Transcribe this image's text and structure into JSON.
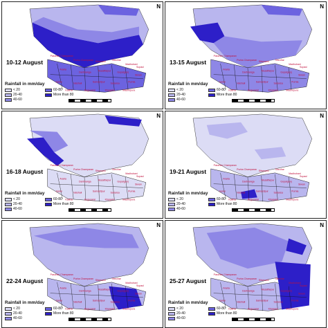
{
  "panels": [
    {
      "date": "10-12 August",
      "intensity": "high-west"
    },
    {
      "date": "13-15 August",
      "intensity": "high-west-medium"
    },
    {
      "date": "16-18 August",
      "intensity": "low-west"
    },
    {
      "date": "19-21 August",
      "intensity": "low"
    },
    {
      "date": "22-24 August",
      "intensity": "medium-east"
    },
    {
      "date": "25-27 August",
      "intensity": "high-east"
    }
  ],
  "legend": {
    "title": "Rainfall in mm/day",
    "items": [
      {
        "label": "< 20",
        "color": "#dcdcf5"
      },
      {
        "label": "60-80",
        "color": "#6c63e0"
      },
      {
        "label": "20-40",
        "color": "#b9b6ee"
      },
      {
        "label": "More than 80",
        "color": "#2d1fc8"
      },
      {
        "label": "40-60",
        "color": "#8e87e6"
      }
    ]
  },
  "north_symbol": "N",
  "districts": [
    "Paschim Champaran",
    "Purba Champaran",
    "Sitamarhi",
    "Sheohar",
    "Madhubani",
    "Supaul",
    "Araria",
    "Darbhanga",
    "Muzaffarpur",
    "Gopalganj",
    "Siwan",
    "Saran",
    "Vaishali",
    "Samastipur",
    "Saharsa",
    "Purnia",
    "Katihar",
    "Begusarai",
    "Khagaria",
    "Madhepura"
  ],
  "colors": {
    "low": "#dcdcf5",
    "lowmed": "#b9b6ee",
    "med": "#8e87e6",
    "high": "#6c63e0",
    "vhigh": "#2d1fc8",
    "label_red": "#c0103c"
  }
}
